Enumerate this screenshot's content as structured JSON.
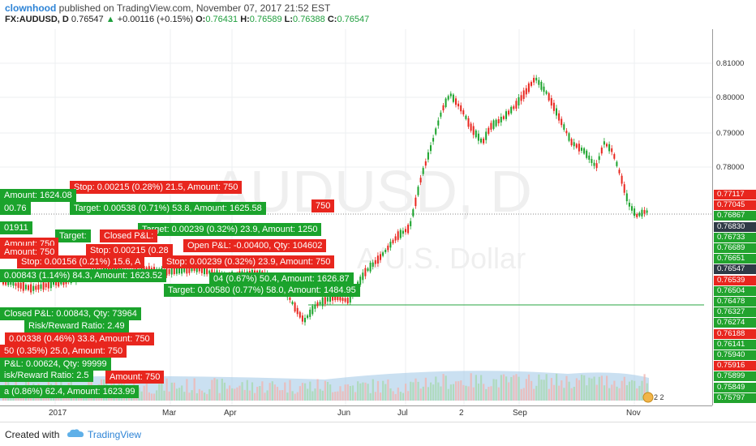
{
  "header": {
    "author": "clownhood",
    "published_text": "published on TradingView.com, November 07, 2017 21:52 EST",
    "symbol": "FX:AUDUSD, D",
    "last": "0.76547",
    "change": "+0.00116 (+0.15%)",
    "o_label": "O:",
    "o_value": "0.76431",
    "h_label": "H:",
    "h_value": "0.76589",
    "l_label": "L:",
    "l_value": "0.76388",
    "c_label": "C:",
    "c_value": "0.76547"
  },
  "watermark": {
    "symbol": "AUDUSD, D",
    "description": "A/U.S. Dollar"
  },
  "price_scale": {
    "ticks": [
      "0.81000",
      "0.80000",
      "0.79000",
      "0.78000"
    ],
    "badges": [
      {
        "text": "0.77117",
        "color": "red"
      },
      {
        "text": "0.77045",
        "color": "red"
      },
      {
        "text": "0.76867",
        "color": "green"
      },
      {
        "text": "0.76830",
        "color": "dark"
      },
      {
        "text": "0.76733",
        "color": "green"
      },
      {
        "text": "0.76689",
        "color": "green"
      },
      {
        "text": "0.76651",
        "color": "green"
      },
      {
        "text": "0.76547",
        "color": "dark"
      },
      {
        "text": "0.76539",
        "color": "red"
      },
      {
        "text": "0.76504",
        "color": "green"
      },
      {
        "text": "0.76478",
        "color": "green"
      },
      {
        "text": "0.76327",
        "color": "green"
      },
      {
        "text": "0.76274",
        "color": "green"
      },
      {
        "text": "0.76188",
        "color": "red"
      },
      {
        "text": "0.76141",
        "color": "green"
      },
      {
        "text": "0.75940",
        "color": "green"
      },
      {
        "text": "0.75916",
        "color": "red"
      },
      {
        "text": "0.75899",
        "color": "green"
      },
      {
        "text": "0.75849",
        "color": "green"
      },
      {
        "text": "0.75797",
        "color": "green"
      }
    ]
  },
  "time_axis": [
    "2017",
    "Mar",
    "Apr",
    "Jun",
    "Jul",
    "2",
    "Sep",
    "Nov"
  ],
  "labels": [
    {
      "text": "Stop: 0.00215 (0.28%) 21.5, Amount: 750",
      "color": "r"
    },
    {
      "text": "Amount: 1624.08",
      "color": "g"
    },
    {
      "text": "Target: 0.00538 (0.71%) 53.8, Amount: 1625.58",
      "color": "g"
    },
    {
      "text": "750",
      "color": "r"
    },
    {
      "text": "00.76",
      "color": "g"
    },
    {
      "text": "01911",
      "color": "g"
    },
    {
      "text": "Target: 0.00239 (0.32%) 23.9, Amount: 1250",
      "color": "g"
    },
    {
      "text": "Target:",
      "color": "g"
    },
    {
      "text": "Closed P&L:",
      "color": "r"
    },
    {
      "text": "Amount: 750",
      "color": "r"
    },
    {
      "text": "Open P&L: -0.00400, Qty: 104602",
      "color": "r"
    },
    {
      "text": "Amount: 750",
      "color": "r"
    },
    {
      "text": "Stop: 0.00215 (0.28",
      "color": "r"
    },
    {
      "text": "Stop: 0.00156 (0.21%) 15.6, A",
      "color": "r"
    },
    {
      "text": "Stop: 0.00239 (0.32%) 23.9, Amount: 750",
      "color": "r"
    },
    {
      "text": "0.00843 (1.14%) 84.3, Amount: 1623.52",
      "color": "g"
    },
    {
      "text": "04 (0.67%) 50.4, Amount: 1626.87",
      "color": "g"
    },
    {
      "text": "Target: 0.00580 (0.77%) 58.0, Amount: 1484.95",
      "color": "g"
    },
    {
      "text": "Closed P&L: 0.00843, Qty: 73964",
      "color": "g"
    },
    {
      "text": "Risk/Reward Ratio: 2.49",
      "color": "g"
    },
    {
      "text": "0.00338 (0.46%) 33.8, Amount: 750",
      "color": "r"
    },
    {
      "text": "50 (0.35%) 25.0, Amount: 750",
      "color": "r"
    },
    {
      "text": "P&L: 0.00624, Qty: 99999",
      "color": "g"
    },
    {
      "text": "isk/Reward Ratio: 2.5",
      "color": "g"
    },
    {
      "text": "Amount: 750",
      "color": "r"
    },
    {
      "text": "a (0.86%) 62.4, Amount: 1623.99",
      "color": "g"
    }
  ],
  "footer": {
    "created_with": "Created with",
    "brand": "TradingView"
  },
  "colors": {
    "up": "#1ba32c",
    "down": "#e8261e",
    "volume": "#9fc7e6",
    "accent": "#2e84d6"
  }
}
